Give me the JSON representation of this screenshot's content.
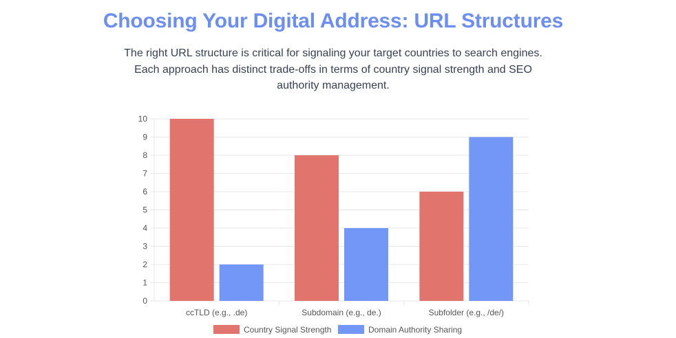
{
  "page": {
    "title": "Choosing Your Digital Address: URL Structures",
    "subtitle": "The right URL structure is critical for signaling your target countries to search engines. Each approach has distinct trade-offs in terms of country signal strength and SEO authority management."
  },
  "chart_data": {
    "type": "bar",
    "categories": [
      "ccTLD (e.g., .de)",
      "Subdomain (e.g., de.)",
      "Subfolder (e.g., /de/)"
    ],
    "series": [
      {
        "name": "Country Signal Strength",
        "values": [
          10,
          8,
          6
        ],
        "color": "#e2746e"
      },
      {
        "name": "Domain Authority Sharing",
        "values": [
          2,
          4,
          9
        ],
        "color": "#7297f6"
      }
    ],
    "ylim": [
      0,
      10
    ],
    "yticks": [
      "0",
      "1",
      "2",
      "3",
      "4",
      "5",
      "6",
      "7",
      "8",
      "9",
      "10"
    ],
    "grid": true,
    "legend_position": "bottom"
  }
}
